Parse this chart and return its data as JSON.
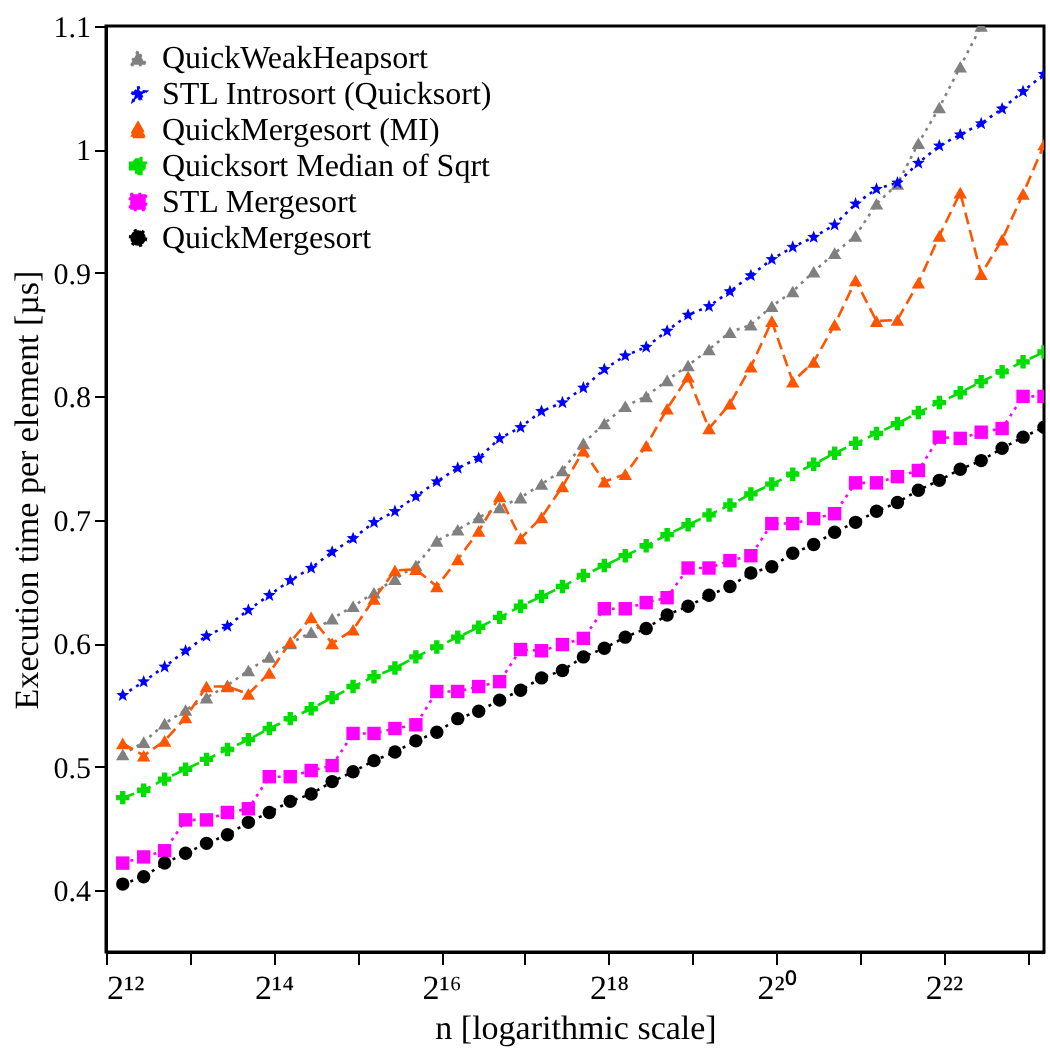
{
  "chart_data": {
    "type": "line",
    "xlabel": "n [logarithmic scale]",
    "ylabel": "Execution time per element [µs]",
    "x": [
      4705,
      5595,
      6654,
      7913,
      9410,
      11190,
      13308,
      15826,
      18820,
      22381,
      26616,
      31652,
      37641,
      44762,
      53232,
      63305,
      75281,
      89523,
      106464,
      126610,
      150562,
      179046,
      212927,
      253219,
      301124,
      358093,
      425854,
      506438,
      602249,
      716186,
      851708,
      1012876,
      1204498,
      1432372,
      1703417,
      2025752,
      2408995,
      2864743,
      3406833,
      4051504,
      4817990,
      5729486,
      6813667,
      8103008,
      9635980
    ],
    "xlim": [
      4096,
      9635980
    ],
    "log": "x",
    "xticks": [
      {
        "value": 4096,
        "label": "2¹²"
      },
      {
        "value": 8192,
        "label": null
      },
      {
        "value": 16384,
        "label": "2¹⁴"
      },
      {
        "value": 32768,
        "label": null
      },
      {
        "value": 65536,
        "label": "2¹⁶"
      },
      {
        "value": 131072,
        "label": null
      },
      {
        "value": 262144,
        "label": "2¹⁸"
      },
      {
        "value": 524288,
        "label": null
      },
      {
        "value": 1048576,
        "label": "2²⁰"
      },
      {
        "value": 2097152,
        "label": null
      },
      {
        "value": 4194304,
        "label": "2²²"
      },
      {
        "value": 8388608,
        "label": null
      }
    ],
    "ylim": [
      0.35,
      1.1
    ],
    "yticks": [
      0.4,
      0.5,
      0.6,
      0.7,
      0.8,
      0.9,
      1,
      1.1
    ],
    "grid": false,
    "legend": "top left",
    "series": [
      {
        "name": "QuickWeakHeapsort",
        "color": "#808080",
        "marker": "triangle",
        "line_style": "dotted",
        "values": [
          0.51,
          0.52,
          0.535,
          0.546,
          0.556,
          0.566,
          0.578,
          0.589,
          0.6,
          0.609,
          0.62,
          0.63,
          0.641,
          0.652,
          0.663,
          0.683,
          0.692,
          0.702,
          0.71,
          0.718,
          0.729,
          0.74,
          0.762,
          0.778,
          0.792,
          0.8,
          0.813,
          0.825,
          0.838,
          0.852,
          0.858,
          0.873,
          0.885,
          0.901,
          0.916,
          0.93,
          0.956,
          0.972,
          1.005,
          1.034,
          1.067,
          1.1,
          null,
          null,
          null
        ]
      },
      {
        "name": "STL Introsort (Quicksort)",
        "color": "#0000ff",
        "marker": "star",
        "line_style": "dotted",
        "values": [
          0.558,
          0.569,
          0.581,
          0.594,
          0.606,
          0.614,
          0.627,
          0.639,
          0.651,
          0.661,
          0.674,
          0.685,
          0.698,
          0.707,
          0.719,
          0.731,
          0.742,
          0.75,
          0.766,
          0.775,
          0.788,
          0.795,
          0.807,
          0.822,
          0.833,
          0.84,
          0.853,
          0.866,
          0.873,
          0.885,
          0.898,
          0.911,
          0.921,
          0.929,
          0.939,
          0.956,
          0.968,
          0.973,
          0.989,
          1.003,
          1.012,
          1.021,
          1.033,
          1.047,
          1.061
        ]
      },
      {
        "name": "QuickMergesort (MI)",
        "color": "#ff5500",
        "marker": "triangle",
        "line_style": "dashed",
        "values": [
          0.519,
          0.509,
          0.521,
          0.54,
          0.565,
          0.565,
          0.559,
          0.576,
          0.601,
          0.621,
          0.6,
          0.611,
          0.636,
          0.659,
          0.66,
          0.646,
          0.668,
          0.691,
          0.719,
          0.685,
          0.702,
          0.727,
          0.756,
          0.731,
          0.737,
          0.76,
          0.79,
          0.816,
          0.774,
          0.794,
          0.824,
          0.861,
          0.812,
          0.828,
          0.858,
          0.894,
          0.861,
          0.862,
          0.892,
          0.93,
          0.965,
          0.899,
          0.927,
          0.964,
          1.004
        ]
      },
      {
        "name": "Quicksort Median of Sqrt",
        "color": "#00dd00",
        "marker": "cross",
        "line_style": "dashed",
        "values": [
          0.475,
          0.481,
          0.49,
          0.498,
          0.506,
          0.514,
          0.522,
          0.531,
          0.539,
          0.547,
          0.556,
          0.565,
          0.573,
          0.58,
          0.589,
          0.597,
          0.605,
          0.613,
          0.621,
          0.63,
          0.638,
          0.646,
          0.655,
          0.663,
          0.671,
          0.679,
          0.688,
          0.696,
          0.704,
          0.712,
          0.721,
          0.729,
          0.737,
          0.745,
          0.754,
          0.762,
          0.77,
          0.778,
          0.787,
          0.795,
          0.803,
          0.812,
          0.82,
          0.828,
          0.836
        ]
      },
      {
        "name": "STL Mergesort",
        "color": "#ff00ff",
        "marker": "square",
        "line_style": "dotted",
        "values": [
          0.422,
          0.427,
          0.432,
          0.457,
          0.457,
          0.463,
          0.466,
          0.492,
          0.492,
          0.497,
          0.501,
          0.527,
          0.527,
          0.531,
          0.534,
          0.561,
          0.561,
          0.565,
          0.569,
          0.595,
          0.594,
          0.599,
          0.604,
          0.628,
          0.628,
          0.633,
          0.637,
          0.661,
          0.661,
          0.667,
          0.671,
          0.697,
          0.697,
          0.701,
          0.705,
          0.73,
          0.73,
          0.735,
          0.74,
          0.767,
          0.766,
          0.771,
          0.774,
          0.8,
          0.8
        ]
      },
      {
        "name": "QuickMergesort",
        "color": "#000000",
        "marker": "circle",
        "line_style": "dotted",
        "values": [
          0.405,
          0.411,
          0.422,
          0.43,
          0.438,
          0.445,
          0.455,
          0.463,
          0.472,
          0.478,
          0.488,
          0.496,
          0.505,
          0.512,
          0.521,
          0.528,
          0.539,
          0.545,
          0.554,
          0.562,
          0.572,
          0.578,
          0.589,
          0.596,
          0.605,
          0.612,
          0.623,
          0.63,
          0.639,
          0.646,
          0.657,
          0.662,
          0.673,
          0.68,
          0.69,
          0.698,
          0.707,
          0.714,
          0.724,
          0.732,
          0.741,
          0.748,
          0.758,
          0.767,
          0.775
        ]
      }
    ]
  }
}
